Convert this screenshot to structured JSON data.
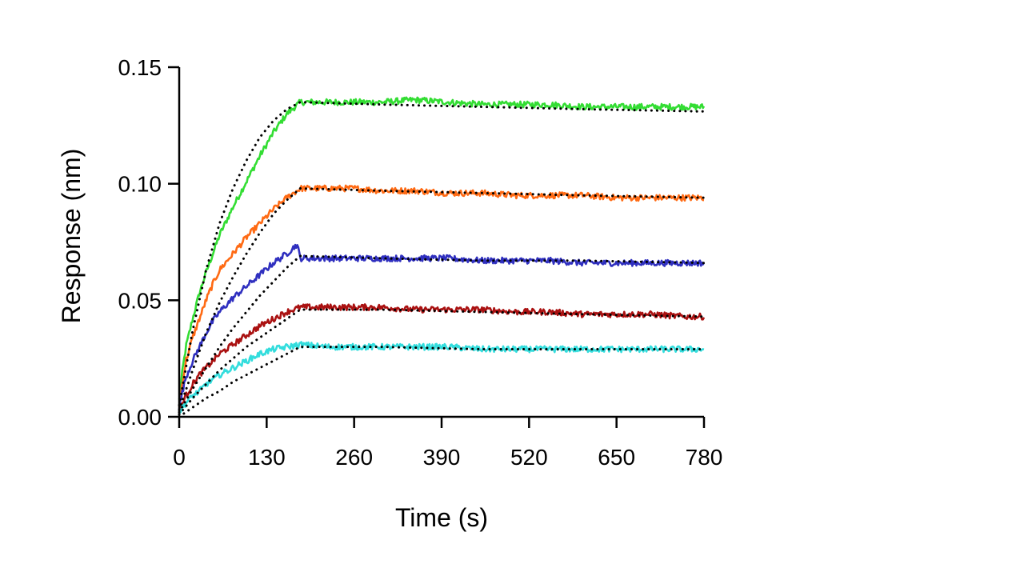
{
  "chart_data": {
    "type": "line",
    "title": "",
    "xlabel": "Time (s)",
    "ylabel": "Response (nm)",
    "xlim": [
      0,
      780
    ],
    "ylim": [
      0,
      0.15
    ],
    "x_ticks": [
      0,
      130,
      260,
      390,
      520,
      650,
      780
    ],
    "x_tick_labels": [
      "0",
      "130",
      "260",
      "390",
      "520",
      "650",
      "780"
    ],
    "y_ticks": [
      0,
      0.05,
      0.1,
      0.15
    ],
    "y_tick_labels": [
      "0.00",
      "0.05",
      "0.10",
      "0.15"
    ],
    "grid": false,
    "legend": "none",
    "association_end_s": 180,
    "series": [
      {
        "color": "#33dd33",
        "x": [
          0,
          5,
          10,
          20,
          30,
          40,
          50,
          60,
          80,
          100,
          120,
          140,
          160,
          180,
          220,
          260,
          300,
          350,
          400,
          450,
          500,
          550,
          600,
          650,
          700,
          750,
          780
        ],
        "y": [
          0.007,
          0.02,
          0.03,
          0.042,
          0.053,
          0.062,
          0.07,
          0.078,
          0.09,
          0.101,
          0.112,
          0.122,
          0.13,
          0.135,
          0.135,
          0.135,
          0.135,
          0.136,
          0.135,
          0.134,
          0.134,
          0.134,
          0.133,
          0.133,
          0.133,
          0.133,
          0.133
        ]
      },
      {
        "color": "#ff6a13",
        "x": [
          0,
          5,
          10,
          20,
          30,
          40,
          50,
          60,
          80,
          100,
          120,
          140,
          160,
          180,
          220,
          260,
          300,
          350,
          400,
          450,
          500,
          550,
          600,
          650,
          700,
          750,
          780
        ],
        "y": [
          0.005,
          0.015,
          0.024,
          0.034,
          0.042,
          0.05,
          0.057,
          0.063,
          0.07,
          0.077,
          0.083,
          0.089,
          0.094,
          0.098,
          0.098,
          0.098,
          0.097,
          0.097,
          0.096,
          0.096,
          0.095,
          0.095,
          0.095,
          0.094,
          0.094,
          0.094,
          0.094
        ]
      },
      {
        "color": "#2f2fbf",
        "x": [
          0,
          5,
          10,
          20,
          30,
          40,
          50,
          60,
          80,
          100,
          120,
          140,
          160,
          175,
          180,
          220,
          260,
          300,
          350,
          400,
          450,
          500,
          550,
          600,
          650,
          700,
          750,
          780
        ],
        "y": [
          0.004,
          0.011,
          0.017,
          0.024,
          0.03,
          0.036,
          0.041,
          0.045,
          0.051,
          0.056,
          0.061,
          0.066,
          0.07,
          0.074,
          0.068,
          0.068,
          0.068,
          0.068,
          0.068,
          0.068,
          0.067,
          0.067,
          0.067,
          0.066,
          0.066,
          0.066,
          0.066,
          0.066
        ]
      },
      {
        "color": "#aa1111",
        "x": [
          0,
          5,
          10,
          20,
          30,
          40,
          50,
          60,
          80,
          100,
          120,
          140,
          160,
          180,
          220,
          260,
          300,
          350,
          400,
          450,
          500,
          550,
          600,
          650,
          700,
          750,
          780
        ],
        "y": [
          0.003,
          0.006,
          0.009,
          0.014,
          0.018,
          0.021,
          0.024,
          0.027,
          0.031,
          0.035,
          0.039,
          0.042,
          0.045,
          0.047,
          0.047,
          0.047,
          0.047,
          0.046,
          0.046,
          0.046,
          0.045,
          0.045,
          0.044,
          0.044,
          0.044,
          0.043,
          0.043
        ]
      },
      {
        "color": "#33dddd",
        "x": [
          0,
          5,
          10,
          20,
          30,
          40,
          50,
          60,
          80,
          100,
          120,
          140,
          160,
          180,
          220,
          260,
          300,
          350,
          400,
          450,
          500,
          550,
          600,
          650,
          700,
          750,
          780
        ],
        "y": [
          0.002,
          0.004,
          0.006,
          0.009,
          0.011,
          0.014,
          0.016,
          0.018,
          0.021,
          0.024,
          0.027,
          0.029,
          0.03,
          0.031,
          0.03,
          0.03,
          0.03,
          0.03,
          0.03,
          0.029,
          0.029,
          0.029,
          0.029,
          0.029,
          0.029,
          0.029,
          0.029
        ]
      }
    ],
    "fit_lines": {
      "color": "#000000",
      "style": "dotted",
      "curves": [
        {
          "x": [
            0,
            20,
            40,
            60,
            80,
            100,
            120,
            140,
            160,
            180,
            300,
            450,
            600,
            780
          ],
          "y": [
            0.005,
            0.037,
            0.063,
            0.083,
            0.098,
            0.11,
            0.12,
            0.127,
            0.132,
            0.135,
            0.134,
            0.133,
            0.132,
            0.131
          ]
        },
        {
          "x": [
            0,
            20,
            40,
            60,
            80,
            100,
            120,
            140,
            160,
            180,
            300,
            450,
            600,
            780
          ],
          "y": [
            0.003,
            0.02,
            0.036,
            0.049,
            0.06,
            0.07,
            0.079,
            0.087,
            0.093,
            0.098,
            0.097,
            0.096,
            0.095,
            0.094
          ]
        },
        {
          "x": [
            0,
            20,
            40,
            60,
            80,
            100,
            120,
            140,
            160,
            180,
            300,
            450,
            600,
            780
          ],
          "y": [
            0.002,
            0.012,
            0.021,
            0.03,
            0.038,
            0.045,
            0.052,
            0.058,
            0.064,
            0.069,
            0.068,
            0.067,
            0.067,
            0.066
          ]
        },
        {
          "x": [
            0,
            20,
            40,
            60,
            80,
            100,
            120,
            140,
            160,
            180,
            300,
            450,
            600,
            780
          ],
          "y": [
            0.001,
            0.008,
            0.014,
            0.02,
            0.025,
            0.03,
            0.034,
            0.038,
            0.042,
            0.046,
            0.046,
            0.045,
            0.044,
            0.043
          ]
        },
        {
          "x": [
            0,
            20,
            40,
            60,
            80,
            100,
            120,
            140,
            160,
            180,
            300,
            450,
            600,
            780
          ],
          "y": [
            0.0,
            0.004,
            0.008,
            0.011,
            0.015,
            0.018,
            0.021,
            0.024,
            0.027,
            0.03,
            0.03,
            0.029,
            0.029,
            0.029
          ]
        }
      ]
    }
  }
}
